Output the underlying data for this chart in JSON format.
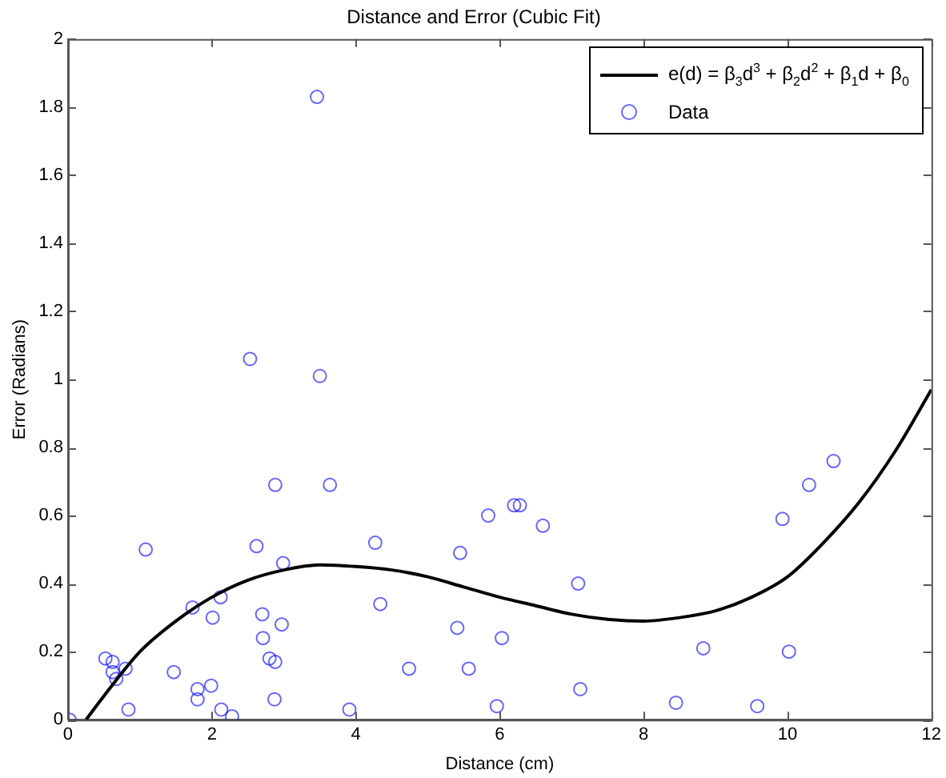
{
  "chart_data": {
    "type": "scatter",
    "title": "Distance and Error (Cubic Fit)",
    "xlabel": "Distance (cm)",
    "ylabel": "Error (Radians)",
    "xlim": [
      0,
      12
    ],
    "ylim": [
      0,
      2
    ],
    "xticks": [
      0,
      2,
      4,
      6,
      8,
      10,
      12
    ],
    "yticks": [
      0,
      0.2,
      0.4,
      0.6,
      0.8,
      1,
      1.2,
      1.4,
      1.6,
      1.8,
      2
    ],
    "grid": false,
    "legend": "top right",
    "series": [
      {
        "name": "e(d) = β$_{3}$d$^{3}$ + β$_{2}$d$^{2}$ + β$_{1}$d + β$_{0}$",
        "type": "line",
        "color": "#000000",
        "marker": "none",
        "line_style": "solid",
        "x": [
          0.25,
          0.5,
          1,
          1.5,
          2,
          2.5,
          3,
          3.5,
          4,
          4.5,
          5,
          5.5,
          6,
          6.5,
          7,
          7.5,
          8,
          8.5,
          9,
          9.5,
          10,
          10.5,
          11,
          11.5,
          12
        ],
        "values": [
          0,
          0.07,
          0.2,
          0.29,
          0.36,
          0.41,
          0.44,
          0.455,
          0.45,
          0.44,
          0.42,
          0.39,
          0.36,
          0.335,
          0.31,
          0.295,
          0.29,
          0.3,
          0.32,
          0.36,
          0.42,
          0.52,
          0.64,
          0.79,
          0.97
        ]
      },
      {
        "name": "Data",
        "type": "scatter",
        "color": "#0000ff",
        "marker": "circle",
        "x": [
          0.02,
          0.52,
          0.62,
          0.62,
          0.67,
          0.8,
          0.84,
          1.08,
          1.47,
          1.73,
          1.8,
          1.8,
          1.99,
          2.01,
          2.12,
          2.13,
          2.28,
          2.53,
          2.62,
          2.7,
          2.71,
          2.8,
          2.88,
          2.87,
          2.88,
          2.97,
          2.99,
          3.46,
          3.5,
          3.64,
          3.91,
          4.27,
          4.34,
          4.74,
          5.41,
          5.45,
          5.57,
          5.84,
          5.96,
          6.03,
          6.2,
          6.28,
          6.6,
          7.09,
          7.12,
          8.45,
          8.83,
          9.58,
          9.93,
          10.02,
          10.3,
          10.64
        ],
        "values": [
          0,
          0.18,
          0.17,
          0.14,
          0.12,
          0.15,
          0.03,
          0.5,
          0.14,
          0.33,
          0.09,
          0.06,
          0.1,
          0.3,
          0.36,
          0.03,
          0.01,
          1.06,
          0.51,
          0.31,
          0.24,
          0.18,
          0.17,
          0.06,
          0.69,
          0.28,
          0.46,
          1.83,
          1.01,
          0.69,
          0.03,
          0.52,
          0.34,
          0.15,
          0.27,
          0.49,
          0.15,
          0.6,
          0.04,
          0.24,
          0.63,
          0.63,
          0.57,
          0.4,
          0.09,
          0.05,
          0.21,
          0.04,
          0.59,
          0.2,
          0.69,
          0.76
        ]
      }
    ]
  }
}
